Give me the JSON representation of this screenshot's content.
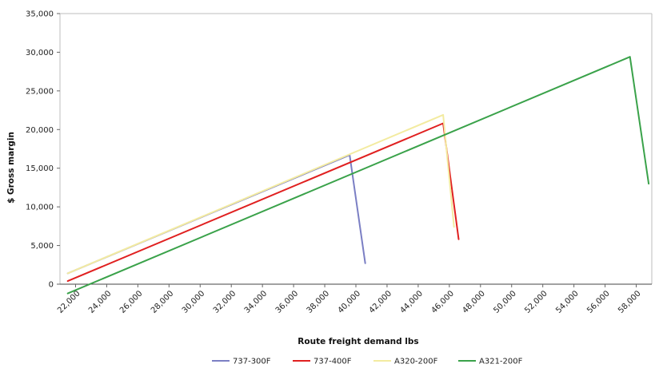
{
  "chart_data": {
    "type": "line",
    "title": "",
    "xlabel": "Route freight demand lbs",
    "ylabel": "$ Gross margin",
    "xlim": [
      21000,
      59000
    ],
    "ylim": [
      0,
      35000
    ],
    "x_ticks": [
      "22,000",
      "24,000",
      "26,000",
      "28,000",
      "30,000",
      "32,000",
      "34,000",
      "36,000",
      "38,000",
      "40,000",
      "42,000",
      "44,000",
      "46,000",
      "48,000",
      "50,000",
      "52,000",
      "54,000",
      "56,000",
      "58,000"
    ],
    "y_ticks": [
      "0",
      "5,000",
      "10,000",
      "15,000",
      "20,000",
      "25,000",
      "30,000",
      "35,000"
    ],
    "grid": false,
    "legend_position": "bottom",
    "series": [
      {
        "name": "737-300F",
        "color": "#7b7fc4",
        "points": [
          [
            21500,
            1400
          ],
          [
            39600,
            16700
          ],
          [
            40600,
            2700
          ]
        ]
      },
      {
        "name": "737-400F",
        "color": "#e02020",
        "points": [
          [
            21500,
            400
          ],
          [
            45600,
            20800
          ],
          [
            46600,
            5800
          ]
        ]
      },
      {
        "name": "A320-200F",
        "color": "#f3eba0",
        "points": [
          [
            21500,
            1400
          ],
          [
            45600,
            21900
          ],
          [
            46300,
            7400
          ]
        ]
      },
      {
        "name": "A321-200F",
        "color": "#3aa24a",
        "points": [
          [
            21500,
            -1200
          ],
          [
            57600,
            29400
          ],
          [
            58800,
            13000
          ]
        ]
      }
    ]
  }
}
